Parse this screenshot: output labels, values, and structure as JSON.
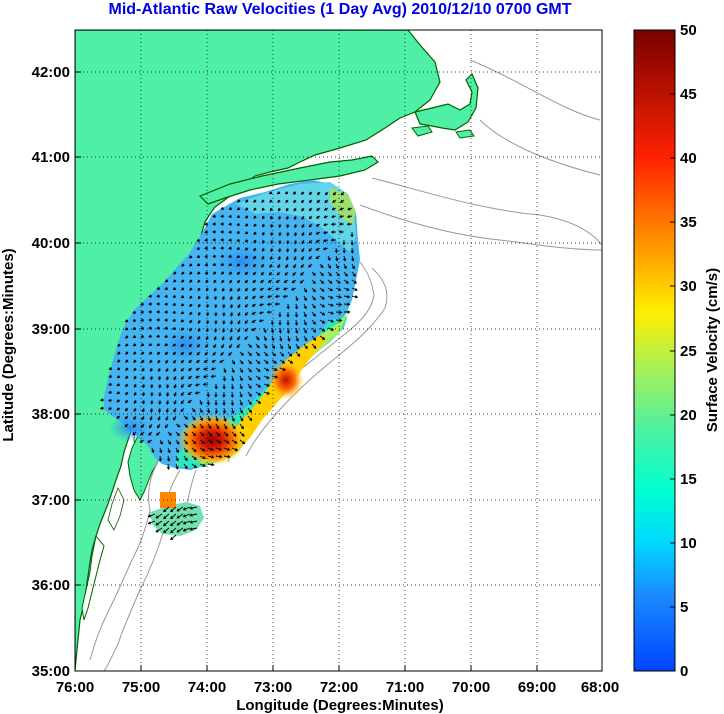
{
  "title": "Mid-Atlantic Raw Velocities (1 Day Avg) 2010/12/10 0700 GMT",
  "x_axis": {
    "label": "Longitude (Degrees:Minutes)",
    "ticks": [
      "76:00",
      "75:00",
      "74:00",
      "73:00",
      "72:00",
      "71:00",
      "70:00",
      "69:00",
      "68:00"
    ]
  },
  "y_axis": {
    "label": "Latitude (Degrees:Minutes)",
    "ticks": [
      "35:00",
      "36:00",
      "37:00",
      "38:00",
      "39:00",
      "40:00",
      "41:00",
      "42:00"
    ]
  },
  "colorbar": {
    "label": "Surface Velocity (cm/s)",
    "ticks": [
      "0",
      "5",
      "10",
      "15",
      "20",
      "25",
      "30",
      "35",
      "40",
      "45",
      "50"
    ],
    "min": 0,
    "max": 50
  },
  "colors": {
    "land": "#4ff0a6",
    "title": "#0000e6",
    "coast_line": "#006000",
    "bathy": "#999999"
  }
}
